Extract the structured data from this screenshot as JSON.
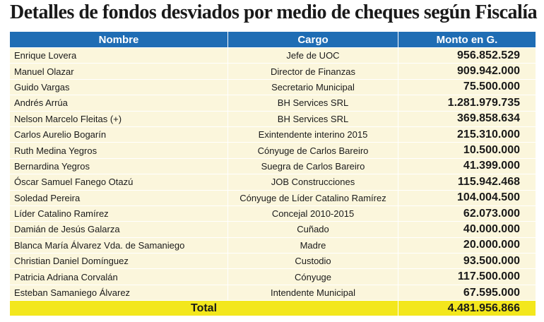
{
  "title": "Detalles de fondos desviados por medio de cheques según Fiscalía",
  "table": {
    "columns": [
      "Nombre",
      "Cargo",
      "Monto en G."
    ],
    "rows": [
      [
        "Enrique Lovera",
        "Jefe de UOC",
        "956.852.529"
      ],
      [
        "Manuel Olazar",
        "Director de Finanzas",
        "909.942.000"
      ],
      [
        "Guido Vargas",
        "Secretario Municipal",
        "75.500.000"
      ],
      [
        "Andrés Arrúa",
        "BH Services SRL",
        "1.281.979.735"
      ],
      [
        "Nelson Marcelo Fleitas (+)",
        "BH Services SRL",
        "369.858.634"
      ],
      [
        "Carlos Aurelio Bogarín",
        "Exintendente interino 2015",
        "215.310.000"
      ],
      [
        "Ruth Medina Yegros",
        "Cónyuge de Carlos Bareiro",
        "10.500.000"
      ],
      [
        "Bernardina Yegros",
        "Suegra de Carlos Bareiro",
        "41.399.000"
      ],
      [
        "Óscar Samuel Fanego Otazú",
        "JOB Construcciones",
        "115.942.468"
      ],
      [
        "Soledad Pereira",
        "Cónyuge de Líder Catalino Ramírez",
        "104.004.500"
      ],
      [
        "Líder Catalino Ramírez",
        "Concejal 2010-2015",
        "62.073.000"
      ],
      [
        "Damián de Jesús Galarza",
        "Cuñado",
        "40.000.000"
      ],
      [
        "Blanca María Álvarez Vda. de Samaniego",
        "Madre",
        "20.000.000"
      ],
      [
        "Christian Daniel Domínguez",
        "Custodio",
        "93.500.000"
      ],
      [
        "Patricia Adriana Corvalán",
        "Cónyuge",
        "117.500.000"
      ],
      [
        "Esteban Samaniego Álvarez",
        "Intendente Municipal",
        "67.595.000"
      ]
    ],
    "total": {
      "label": "Total",
      "amount": "4.481.956.866"
    }
  }
}
